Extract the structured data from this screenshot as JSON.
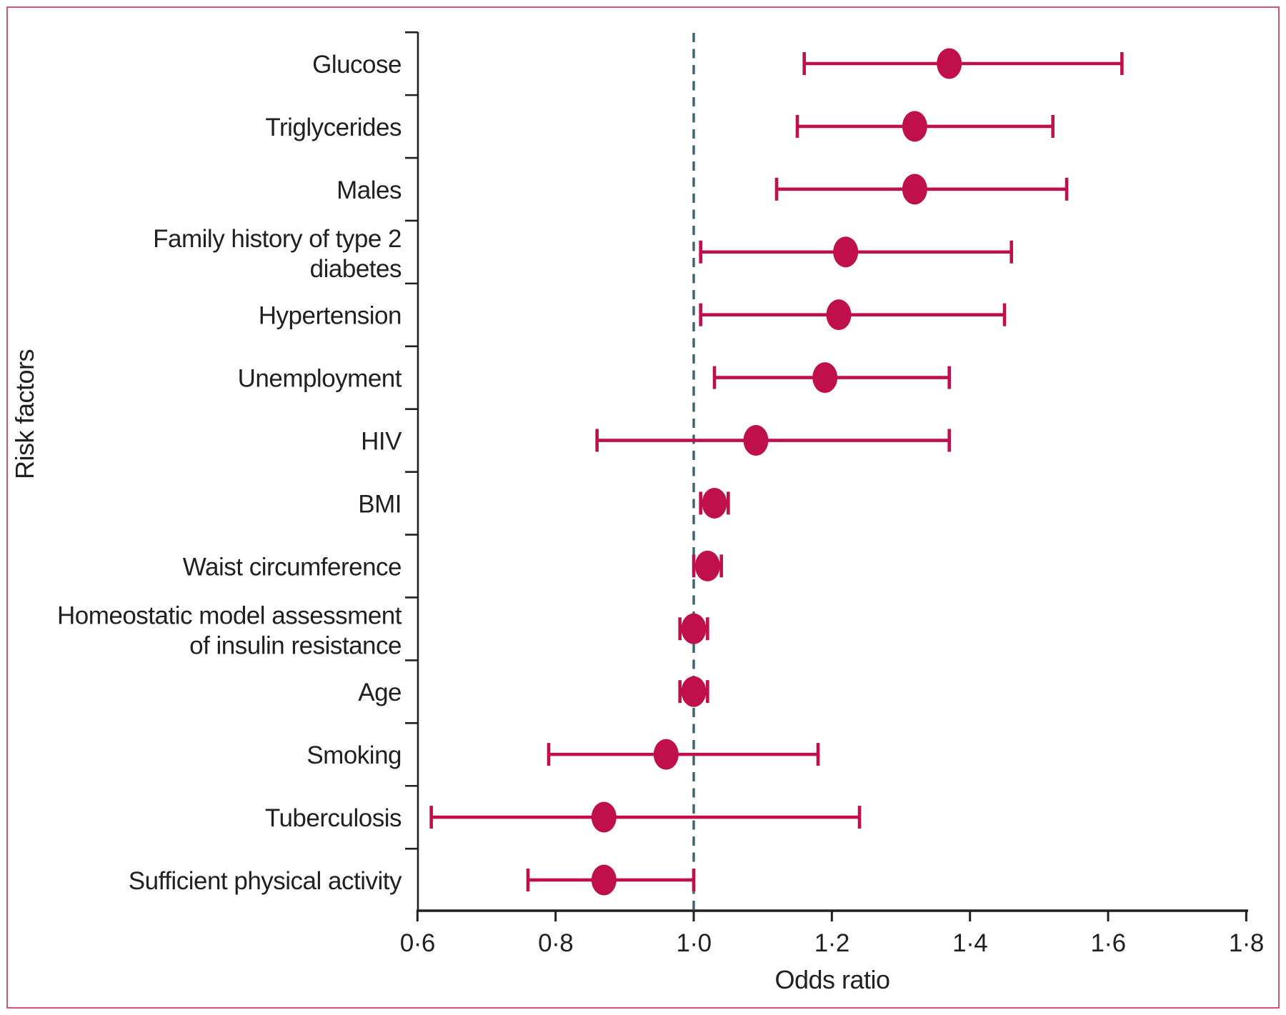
{
  "figure": {
    "kind": "forest-plot-figure",
    "background": "#FFFFFF"
  },
  "style": {
    "marker_color": "#C0104C",
    "errorbar_color": "#C0104C",
    "reference_line_color": "#3A6372",
    "axis_color": "#231F20",
    "text_color": "#231F20",
    "frame_border_color": "#D05577"
  },
  "chart_data": {
    "type": "scatter",
    "subtype": "forest-plot-odds-ratios-with-95ci",
    "title": "",
    "xlabel": "Odds ratio",
    "ylabel": "Risk factors",
    "xlim": [
      0.6,
      1.8
    ],
    "grid": false,
    "reference_line_x": 1.0,
    "x_ticks": [
      {
        "value": 0.6,
        "label": "0·6"
      },
      {
        "value": 0.8,
        "label": "0·8"
      },
      {
        "value": 1.0,
        "label": "1·0"
      },
      {
        "value": 1.2,
        "label": "1·2"
      },
      {
        "value": 1.4,
        "label": "1·4"
      },
      {
        "value": 1.6,
        "label": "1·6"
      },
      {
        "value": 1.8,
        "label": "1·8"
      }
    ],
    "rows": [
      {
        "slug": "glucose",
        "label_lines": [
          "Glucose"
        ],
        "or": 1.37,
        "ci_low": 1.16,
        "ci_high": 1.62
      },
      {
        "slug": "triglycerides",
        "label_lines": [
          "Triglycerides"
        ],
        "or": 1.32,
        "ci_low": 1.15,
        "ci_high": 1.52
      },
      {
        "slug": "males",
        "label_lines": [
          "Males"
        ],
        "or": 1.32,
        "ci_low": 1.12,
        "ci_high": 1.54
      },
      {
        "slug": "family-history-type-2-diabetes",
        "label_lines": [
          "Family history of type 2",
          "diabetes"
        ],
        "or": 1.22,
        "ci_low": 1.01,
        "ci_high": 1.46
      },
      {
        "slug": "hypertension",
        "label_lines": [
          "Hypertension"
        ],
        "or": 1.21,
        "ci_low": 1.01,
        "ci_high": 1.45
      },
      {
        "slug": "unemployment",
        "label_lines": [
          "Unemployment"
        ],
        "or": 1.19,
        "ci_low": 1.03,
        "ci_high": 1.37
      },
      {
        "slug": "hiv",
        "label_lines": [
          "HIV"
        ],
        "or": 1.09,
        "ci_low": 0.86,
        "ci_high": 1.37
      },
      {
        "slug": "bmi",
        "label_lines": [
          "BMI"
        ],
        "or": 1.03,
        "ci_low": 1.01,
        "ci_high": 1.05
      },
      {
        "slug": "waist-circumference",
        "label_lines": [
          "Waist circumference"
        ],
        "or": 1.02,
        "ci_low": 1.0,
        "ci_high": 1.04
      },
      {
        "slug": "homa-insulin-resistance",
        "label_lines": [
          "Homeostatic model assessment",
          "of insulin resistance"
        ],
        "or": 1.0,
        "ci_low": 0.98,
        "ci_high": 1.02
      },
      {
        "slug": "age",
        "label_lines": [
          "Age"
        ],
        "or": 1.0,
        "ci_low": 0.98,
        "ci_high": 1.02
      },
      {
        "slug": "smoking",
        "label_lines": [
          "Smoking"
        ],
        "or": 0.96,
        "ci_low": 0.79,
        "ci_high": 1.18
      },
      {
        "slug": "tuberculosis",
        "label_lines": [
          "Tuberculosis"
        ],
        "or": 0.87,
        "ci_low": 0.62,
        "ci_high": 1.24
      },
      {
        "slug": "sufficient-physical-activity",
        "label_lines": [
          "Sufficient physical activity"
        ],
        "or": 0.87,
        "ci_low": 0.76,
        "ci_high": 1.0
      }
    ]
  }
}
